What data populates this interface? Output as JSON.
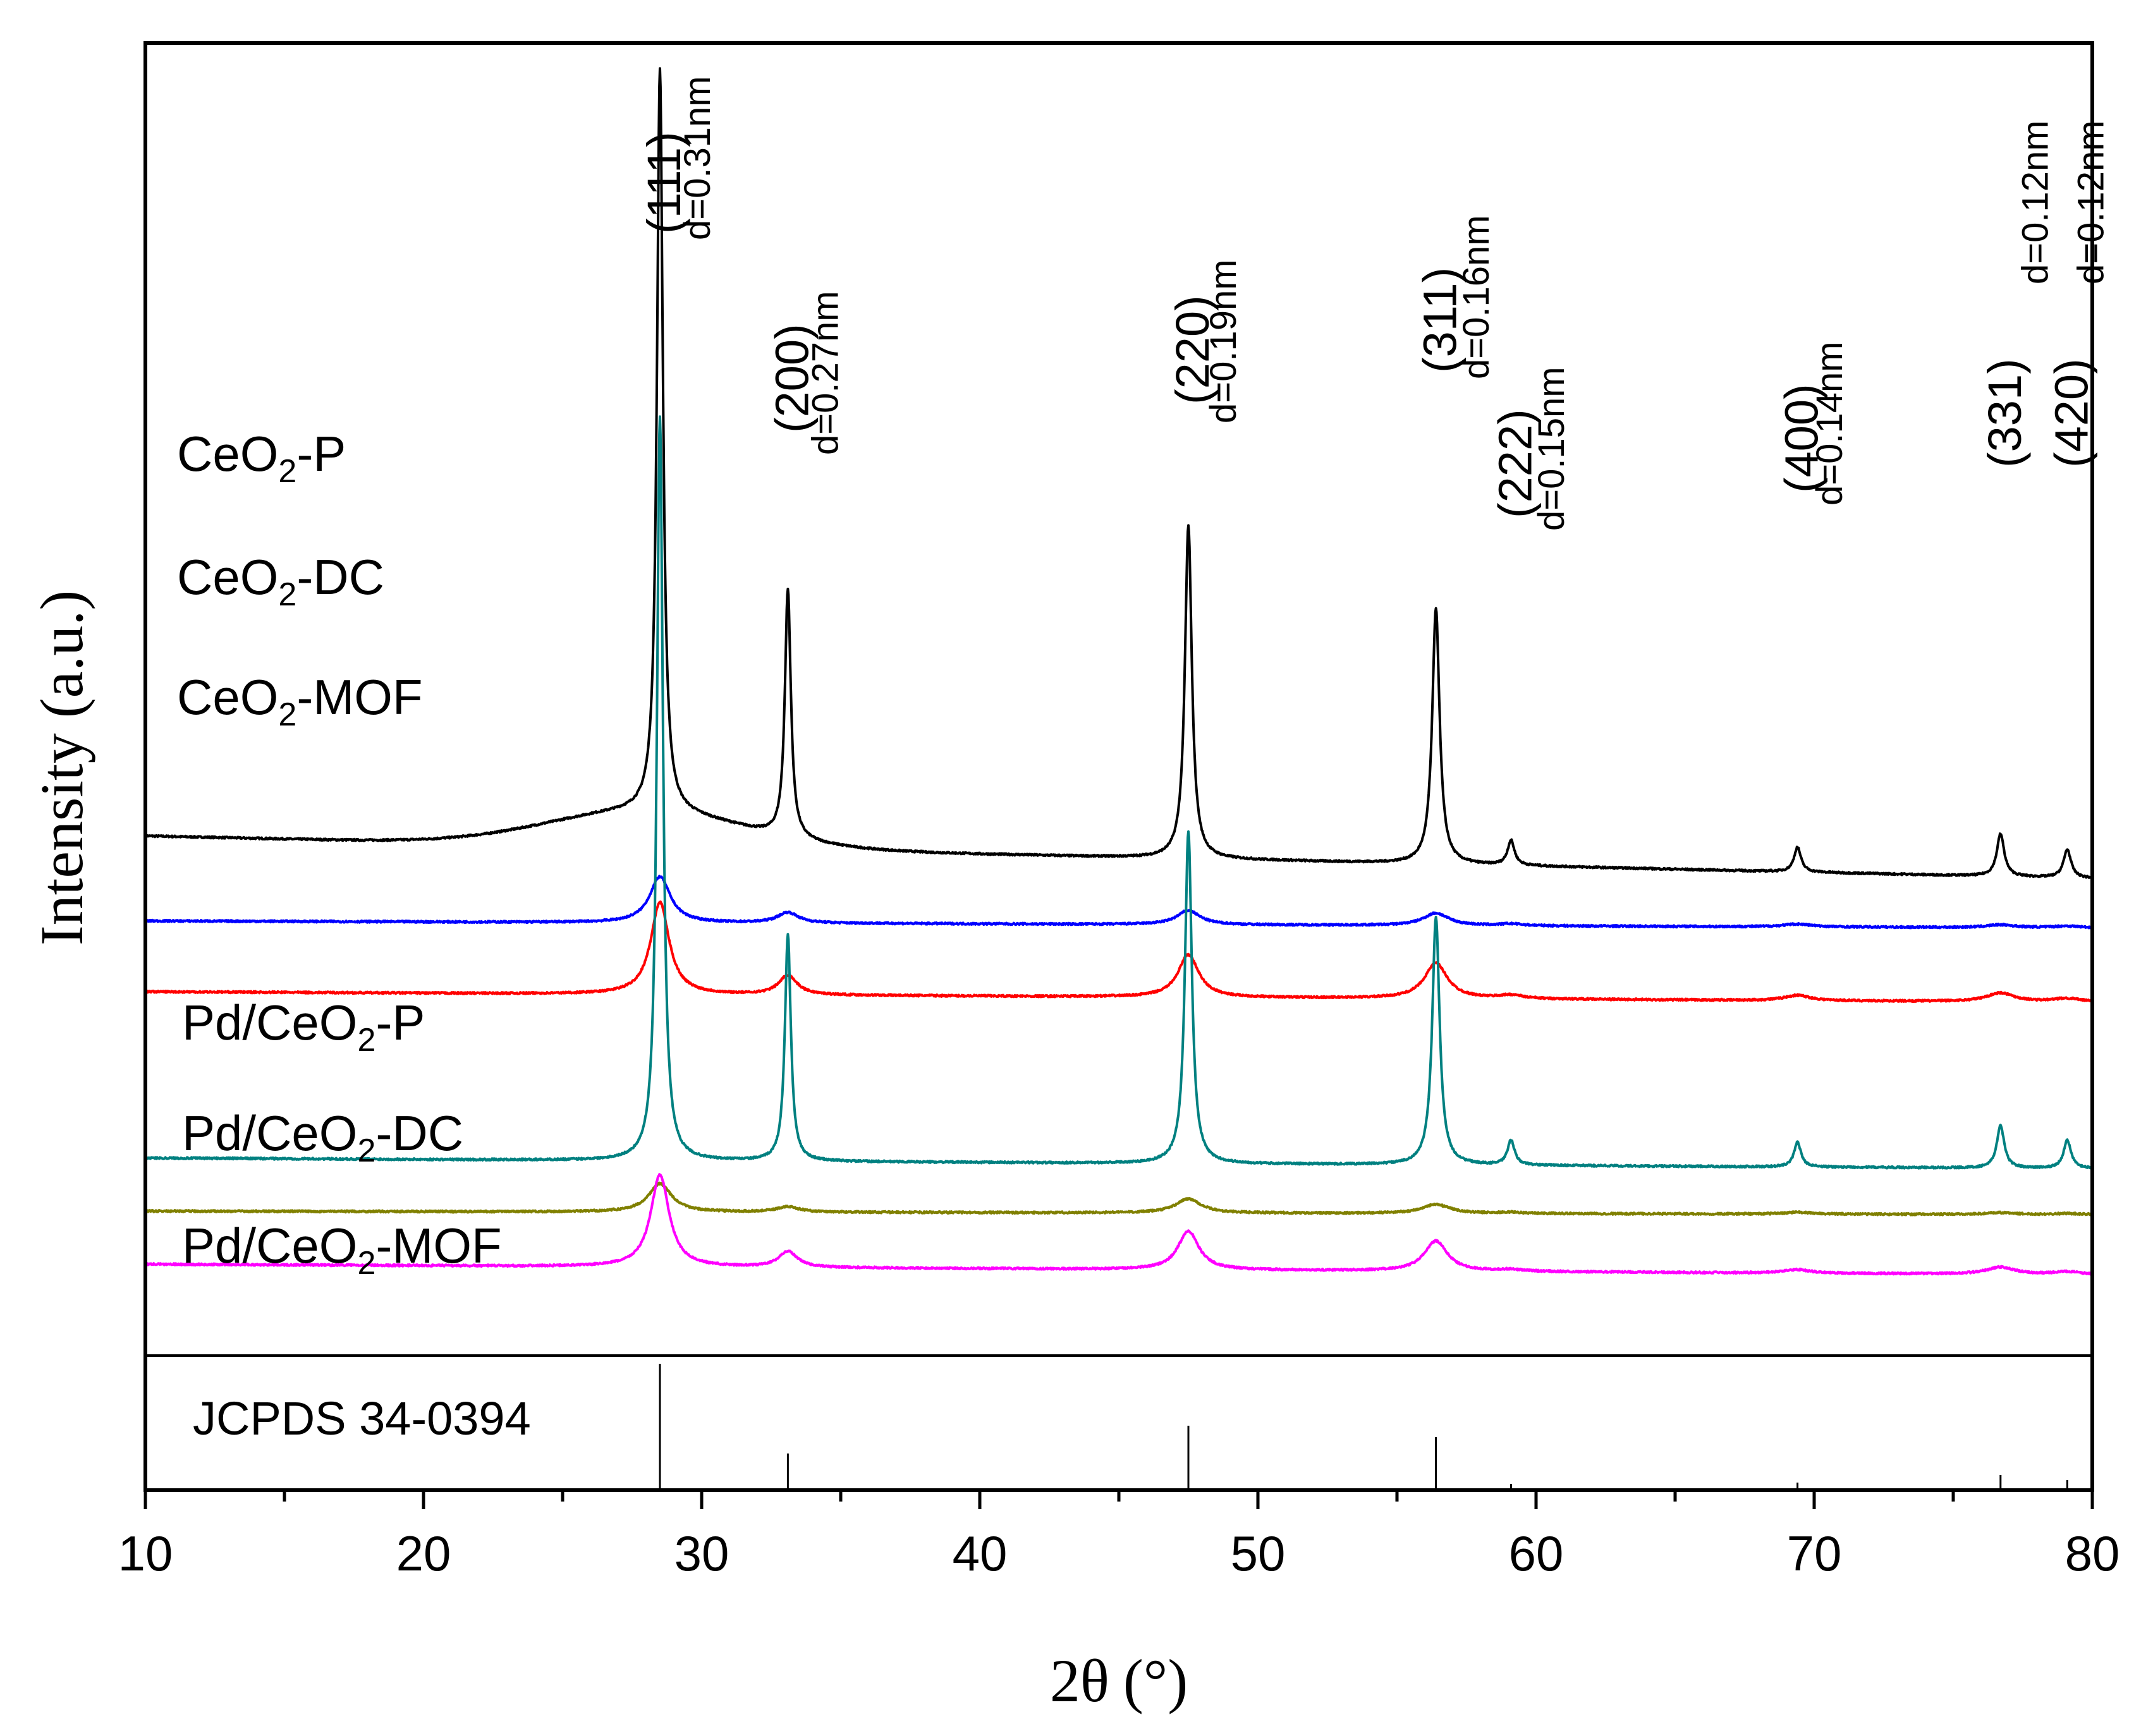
{
  "chart_data": {
    "type": "line",
    "title": "",
    "xlabel": {
      "main": "2θ",
      "unit": "(°)"
    },
    "ylabel": "Intensity (a.u.)",
    "xlim": [
      10,
      80
    ],
    "x_ticks": [
      "10",
      "20",
      "30",
      "40",
      "50",
      "60",
      "70",
      "80"
    ],
    "x_tick_values": [
      10,
      20,
      30,
      40,
      50,
      60,
      70,
      80
    ],
    "y_ticks": [],
    "grid": false,
    "legend": "none",
    "peaks": [
      28.5,
      33.1,
      47.5,
      56.4,
      59.1,
      69.4,
      76.7,
      79.1
    ],
    "series": [
      {
        "id": "s1",
        "name_parts": [
          "CeO",
          "2",
          "-P"
        ],
        "color": "#000000",
        "offset": 100,
        "baseline_start": 12,
        "baseline_end": 0,
        "bump": [
          10,
          28.0,
          5
        ],
        "peak_heights": [
          210,
          70,
          94,
          72,
          7,
          7,
          12,
          8
        ],
        "peak_widths": [
          0.13,
          0.13,
          0.15,
          0.16,
          0.15,
          0.15,
          0.16,
          0.16
        ]
      },
      {
        "id": "s2",
        "name_parts": [
          "CeO",
          "2",
          "-DC"
        ],
        "color": "#0000ff",
        "offset": 86,
        "baseline_start": 2,
        "baseline_end": 0,
        "bump": [
          0,
          28,
          5
        ],
        "peak_heights": [
          13,
          3,
          4,
          3.5,
          0.5,
          0.8,
          0.8,
          0.5
        ],
        "peak_widths": [
          0.45,
          0.45,
          0.5,
          0.55,
          0.5,
          0.6,
          0.6,
          0.6
        ]
      },
      {
        "id": "s3",
        "name_parts": [
          "CeO",
          "2",
          "-MOF"
        ],
        "color": "#ff0000",
        "offset": 65,
        "baseline_start": 3,
        "baseline_end": 0,
        "bump": [
          0,
          28,
          5
        ],
        "peak_heights": [
          26,
          5.5,
          12,
          10,
          1,
          1.5,
          2.5,
          1
        ],
        "peak_widths": [
          0.4,
          0.4,
          0.45,
          0.5,
          0.5,
          0.55,
          0.6,
          0.6
        ]
      },
      {
        "id": "s4",
        "name_parts": [
          "Pd/CeO",
          "2",
          "-P"
        ],
        "color": "#008080",
        "offset": 18,
        "baseline_start": 3,
        "baseline_end": 0,
        "bump": [
          0,
          28,
          5
        ],
        "peak_heights": [
          210,
          64,
          94,
          70,
          7,
          7,
          12,
          8
        ],
        "peak_widths": [
          0.13,
          0.13,
          0.15,
          0.16,
          0.15,
          0.15,
          0.16,
          0.16
        ]
      },
      {
        "id": "s5",
        "name_parts": [
          "Pd/CeO",
          "2",
          "-DC"
        ],
        "color": "#808000",
        "offset": 5,
        "baseline_start": 1,
        "baseline_end": 0,
        "bump": [
          0,
          28,
          5
        ],
        "peak_heights": [
          8,
          1.5,
          4,
          2.5,
          0.3,
          0.5,
          0.5,
          0.3
        ],
        "peak_widths": [
          0.5,
          0.5,
          0.55,
          0.6,
          0.55,
          0.6,
          0.6,
          0.6
        ]
      },
      {
        "id": "s6",
        "name_parts": [
          "Pd/CeO",
          "2",
          "-MOF"
        ],
        "color": "#ff00ff",
        "offset": -12,
        "baseline_start": 3,
        "baseline_end": 0,
        "bump": [
          0,
          28,
          5
        ],
        "peak_heights": [
          26,
          4.5,
          11,
          8.5,
          0.5,
          1,
          2,
          0.8
        ],
        "peak_widths": [
          0.4,
          0.4,
          0.45,
          0.5,
          0.5,
          0.55,
          0.6,
          0.6
        ]
      }
    ],
    "peak_labels": [
      {
        "x": 28.5,
        "hkl": "(111)",
        "d": "d=0.31nm"
      },
      {
        "x": 33.1,
        "hkl": "(200)",
        "d": "d=0.27nm"
      },
      {
        "x": 47.5,
        "hkl": "(220)",
        "d": "d=0.19nm"
      },
      {
        "x": 56.4,
        "hkl": "(311)",
        "d": "d=0.16nm"
      },
      {
        "x": 59.1,
        "hkl": "(222)",
        "d": "d=0.15nm"
      },
      {
        "x": 69.4,
        "hkl": "(400)",
        "d": "d=0.14nm"
      },
      {
        "x": 76.7,
        "hkl": "(331)",
        "d": "d=0.12nm"
      },
      {
        "x": 79.1,
        "hkl": "(420)",
        "d": "d=0.12nm"
      }
    ],
    "reference": {
      "label": "JCPDS 34-0394",
      "lines": [
        {
          "x": 28.5,
          "intensity": 100
        },
        {
          "x": 33.1,
          "intensity": 29
        },
        {
          "x": 47.5,
          "intensity": 51
        },
        {
          "x": 56.4,
          "intensity": 42
        },
        {
          "x": 59.1,
          "intensity": 5
        },
        {
          "x": 69.4,
          "intensity": 6
        },
        {
          "x": 76.7,
          "intensity": 12
        },
        {
          "x": 79.1,
          "intensity": 8
        }
      ]
    }
  }
}
